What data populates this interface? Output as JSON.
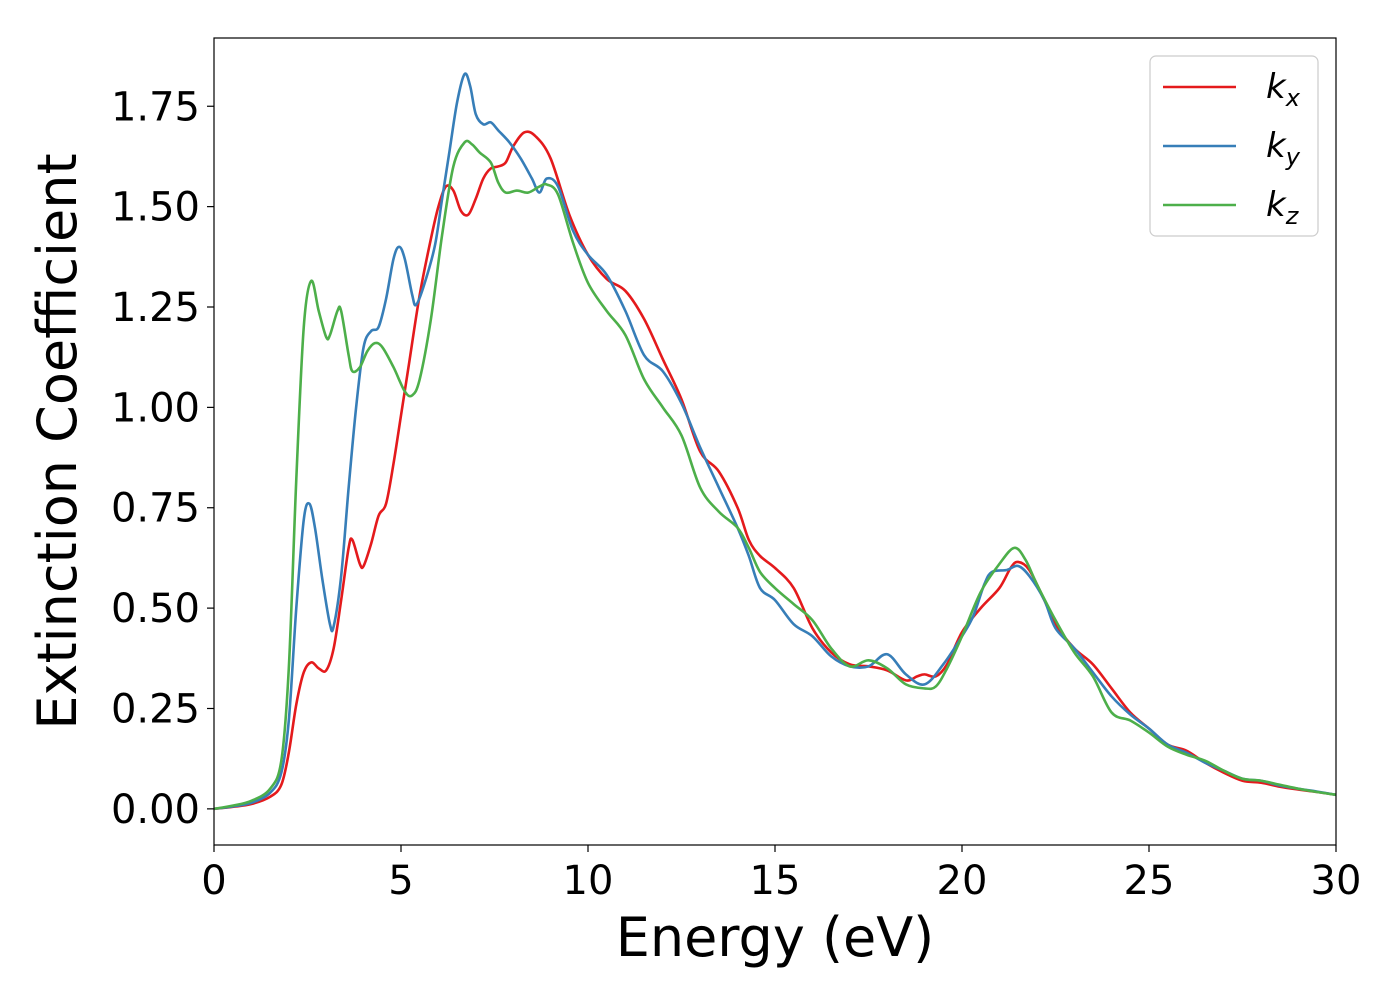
{
  "chart_data": {
    "type": "line",
    "title": "",
    "xlabel": "Energy (eV)",
    "ylabel": "Extinction Coefficient",
    "xlim": [
      0,
      30
    ],
    "ylim": [
      -0.09,
      1.92
    ],
    "x_ticks": [
      0,
      5,
      10,
      15,
      20,
      25,
      30
    ],
    "x_tick_labels": [
      "0",
      "5",
      "10",
      "15",
      "20",
      "25",
      "30"
    ],
    "y_ticks": [
      0,
      0.25,
      0.5,
      0.75,
      1.0,
      1.25,
      1.5,
      1.75
    ],
    "y_tick_labels": [
      "0.00",
      "0.25",
      "0.50",
      "0.75",
      "1.00",
      "1.25",
      "1.50",
      "1.75"
    ],
    "grid": false,
    "legend_position": "top-right",
    "series": [
      {
        "name": "kx",
        "label_main": "k",
        "label_sub": "x",
        "color": "#e41a1c",
        "points": [
          [
            0,
            0
          ],
          [
            0.5,
            0.005
          ],
          [
            1.0,
            0.012
          ],
          [
            1.5,
            0.03
          ],
          [
            1.8,
            0.06
          ],
          [
            2.0,
            0.14
          ],
          [
            2.2,
            0.26
          ],
          [
            2.4,
            0.34
          ],
          [
            2.6,
            0.365
          ],
          [
            2.8,
            0.35
          ],
          [
            3.0,
            0.345
          ],
          [
            3.2,
            0.4
          ],
          [
            3.4,
            0.52
          ],
          [
            3.6,
            0.65
          ],
          [
            3.7,
            0.67
          ],
          [
            3.9,
            0.61
          ],
          [
            4.0,
            0.605
          ],
          [
            4.2,
            0.66
          ],
          [
            4.4,
            0.73
          ],
          [
            4.6,
            0.76
          ],
          [
            4.8,
            0.86
          ],
          [
            5.0,
            0.98
          ],
          [
            5.2,
            1.1
          ],
          [
            5.5,
            1.28
          ],
          [
            5.8,
            1.42
          ],
          [
            6.0,
            1.5
          ],
          [
            6.2,
            1.55
          ],
          [
            6.4,
            1.54
          ],
          [
            6.6,
            1.49
          ],
          [
            6.8,
            1.48
          ],
          [
            7.0,
            1.52
          ],
          [
            7.2,
            1.57
          ],
          [
            7.4,
            1.595
          ],
          [
            7.6,
            1.6
          ],
          [
            7.8,
            1.61
          ],
          [
            8.0,
            1.65
          ],
          [
            8.3,
            1.685
          ],
          [
            8.6,
            1.675
          ],
          [
            9.0,
            1.62
          ],
          [
            9.5,
            1.48
          ],
          [
            10.0,
            1.38
          ],
          [
            10.5,
            1.32
          ],
          [
            11.0,
            1.29
          ],
          [
            11.5,
            1.22
          ],
          [
            12.0,
            1.12
          ],
          [
            12.5,
            1.02
          ],
          [
            13.0,
            0.89
          ],
          [
            13.5,
            0.84
          ],
          [
            14.0,
            0.75
          ],
          [
            14.3,
            0.67
          ],
          [
            14.6,
            0.63
          ],
          [
            15.0,
            0.6
          ],
          [
            15.5,
            0.55
          ],
          [
            16.0,
            0.45
          ],
          [
            16.5,
            0.39
          ],
          [
            17.0,
            0.36
          ],
          [
            17.5,
            0.355
          ],
          [
            18.0,
            0.345
          ],
          [
            18.5,
            0.32
          ],
          [
            18.8,
            0.33
          ],
          [
            19.0,
            0.335
          ],
          [
            19.3,
            0.33
          ],
          [
            19.6,
            0.36
          ],
          [
            20.0,
            0.44
          ],
          [
            20.5,
            0.5
          ],
          [
            21.0,
            0.55
          ],
          [
            21.3,
            0.6
          ],
          [
            21.5,
            0.615
          ],
          [
            21.8,
            0.595
          ],
          [
            22.2,
            0.52
          ],
          [
            22.5,
            0.46
          ],
          [
            23.0,
            0.4
          ],
          [
            23.5,
            0.36
          ],
          [
            24.0,
            0.3
          ],
          [
            24.5,
            0.24
          ],
          [
            25.0,
            0.2
          ],
          [
            25.5,
            0.16
          ],
          [
            26.0,
            0.145
          ],
          [
            26.5,
            0.115
          ],
          [
            27.0,
            0.09
          ],
          [
            27.5,
            0.07
          ],
          [
            28.0,
            0.065
          ],
          [
            28.5,
            0.055
          ],
          [
            29.0,
            0.048
          ],
          [
            29.5,
            0.042
          ],
          [
            30.0,
            0.035
          ]
        ]
      },
      {
        "name": "ky",
        "label_main": "k",
        "label_sub": "y",
        "color": "#377eb8",
        "points": [
          [
            0,
            0
          ],
          [
            0.5,
            0.006
          ],
          [
            1.0,
            0.015
          ],
          [
            1.5,
            0.04
          ],
          [
            1.8,
            0.09
          ],
          [
            2.0,
            0.22
          ],
          [
            2.2,
            0.5
          ],
          [
            2.4,
            0.72
          ],
          [
            2.55,
            0.76
          ],
          [
            2.7,
            0.7
          ],
          [
            2.9,
            0.57
          ],
          [
            3.1,
            0.46
          ],
          [
            3.2,
            0.455
          ],
          [
            3.4,
            0.58
          ],
          [
            3.6,
            0.8
          ],
          [
            3.8,
            1.0
          ],
          [
            4.0,
            1.15
          ],
          [
            4.2,
            1.19
          ],
          [
            4.4,
            1.2
          ],
          [
            4.6,
            1.27
          ],
          [
            4.8,
            1.37
          ],
          [
            4.95,
            1.4
          ],
          [
            5.1,
            1.37
          ],
          [
            5.3,
            1.28
          ],
          [
            5.4,
            1.255
          ],
          [
            5.6,
            1.3
          ],
          [
            5.9,
            1.4
          ],
          [
            6.1,
            1.52
          ],
          [
            6.3,
            1.64
          ],
          [
            6.5,
            1.76
          ],
          [
            6.7,
            1.83
          ],
          [
            6.85,
            1.8
          ],
          [
            7.0,
            1.73
          ],
          [
            7.2,
            1.705
          ],
          [
            7.4,
            1.71
          ],
          [
            7.6,
            1.69
          ],
          [
            7.9,
            1.66
          ],
          [
            8.2,
            1.62
          ],
          [
            8.5,
            1.57
          ],
          [
            8.7,
            1.535
          ],
          [
            8.9,
            1.57
          ],
          [
            9.2,
            1.55
          ],
          [
            9.6,
            1.44
          ],
          [
            10.0,
            1.38
          ],
          [
            10.5,
            1.33
          ],
          [
            11.0,
            1.24
          ],
          [
            11.5,
            1.13
          ],
          [
            12.0,
            1.09
          ],
          [
            12.5,
            1.01
          ],
          [
            13.0,
            0.9
          ],
          [
            13.5,
            0.8
          ],
          [
            14.0,
            0.7
          ],
          [
            14.3,
            0.63
          ],
          [
            14.6,
            0.55
          ],
          [
            15.0,
            0.52
          ],
          [
            15.5,
            0.46
          ],
          [
            16.0,
            0.43
          ],
          [
            16.5,
            0.38
          ],
          [
            17.0,
            0.355
          ],
          [
            17.5,
            0.355
          ],
          [
            18.0,
            0.385
          ],
          [
            18.5,
            0.335
          ],
          [
            19.0,
            0.31
          ],
          [
            19.5,
            0.36
          ],
          [
            20.0,
            0.43
          ],
          [
            20.3,
            0.48
          ],
          [
            20.6,
            0.56
          ],
          [
            20.8,
            0.59
          ],
          [
            21.2,
            0.595
          ],
          [
            21.5,
            0.605
          ],
          [
            21.8,
            0.58
          ],
          [
            22.2,
            0.52
          ],
          [
            22.5,
            0.45
          ],
          [
            23.0,
            0.4
          ],
          [
            23.5,
            0.34
          ],
          [
            24.0,
            0.28
          ],
          [
            24.5,
            0.235
          ],
          [
            25.0,
            0.2
          ],
          [
            25.5,
            0.16
          ],
          [
            26.0,
            0.14
          ],
          [
            26.5,
            0.115
          ],
          [
            27.0,
            0.095
          ],
          [
            27.5,
            0.075
          ],
          [
            28.0,
            0.07
          ],
          [
            28.5,
            0.058
          ],
          [
            29.0,
            0.05
          ],
          [
            29.5,
            0.043
          ],
          [
            30.0,
            0.035
          ]
        ]
      },
      {
        "name": "kz",
        "label_main": "k",
        "label_sub": "z",
        "color": "#4daf4a",
        "points": [
          [
            0,
            0
          ],
          [
            0.5,
            0.008
          ],
          [
            1.0,
            0.02
          ],
          [
            1.5,
            0.05
          ],
          [
            1.8,
            0.12
          ],
          [
            2.0,
            0.35
          ],
          [
            2.2,
            0.82
          ],
          [
            2.4,
            1.2
          ],
          [
            2.6,
            1.315
          ],
          [
            2.8,
            1.24
          ],
          [
            3.0,
            1.175
          ],
          [
            3.1,
            1.18
          ],
          [
            3.3,
            1.24
          ],
          [
            3.4,
            1.24
          ],
          [
            3.6,
            1.13
          ],
          [
            3.7,
            1.09
          ],
          [
            3.9,
            1.1
          ],
          [
            4.1,
            1.14
          ],
          [
            4.3,
            1.16
          ],
          [
            4.5,
            1.15
          ],
          [
            4.8,
            1.1
          ],
          [
            5.1,
            1.04
          ],
          [
            5.3,
            1.03
          ],
          [
            5.5,
            1.07
          ],
          [
            5.8,
            1.22
          ],
          [
            6.1,
            1.43
          ],
          [
            6.4,
            1.6
          ],
          [
            6.7,
            1.66
          ],
          [
            6.9,
            1.655
          ],
          [
            7.1,
            1.635
          ],
          [
            7.4,
            1.61
          ],
          [
            7.6,
            1.56
          ],
          [
            7.8,
            1.535
          ],
          [
            8.1,
            1.54
          ],
          [
            8.4,
            1.535
          ],
          [
            8.7,
            1.55
          ],
          [
            8.9,
            1.555
          ],
          [
            9.2,
            1.53
          ],
          [
            9.6,
            1.41
          ],
          [
            10.0,
            1.31
          ],
          [
            10.5,
            1.24
          ],
          [
            11.0,
            1.18
          ],
          [
            11.5,
            1.07
          ],
          [
            12.0,
            1.0
          ],
          [
            12.5,
            0.93
          ],
          [
            13.0,
            0.8
          ],
          [
            13.5,
            0.74
          ],
          [
            14.0,
            0.7
          ],
          [
            14.3,
            0.65
          ],
          [
            14.6,
            0.59
          ],
          [
            15.0,
            0.55
          ],
          [
            15.5,
            0.51
          ],
          [
            16.0,
            0.47
          ],
          [
            16.5,
            0.4
          ],
          [
            17.0,
            0.355
          ],
          [
            17.5,
            0.37
          ],
          [
            18.0,
            0.35
          ],
          [
            18.5,
            0.31
          ],
          [
            19.0,
            0.3
          ],
          [
            19.3,
            0.305
          ],
          [
            19.6,
            0.35
          ],
          [
            20.0,
            0.43
          ],
          [
            20.5,
            0.54
          ],
          [
            21.0,
            0.61
          ],
          [
            21.4,
            0.65
          ],
          [
            21.7,
            0.62
          ],
          [
            22.0,
            0.56
          ],
          [
            22.5,
            0.47
          ],
          [
            23.0,
            0.39
          ],
          [
            23.5,
            0.33
          ],
          [
            24.0,
            0.24
          ],
          [
            24.5,
            0.22
          ],
          [
            25.0,
            0.19
          ],
          [
            25.5,
            0.155
          ],
          [
            26.0,
            0.135
          ],
          [
            26.5,
            0.12
          ],
          [
            27.0,
            0.095
          ],
          [
            27.5,
            0.075
          ],
          [
            28.0,
            0.07
          ],
          [
            28.5,
            0.06
          ],
          [
            29.0,
            0.05
          ],
          [
            29.5,
            0.042
          ],
          [
            30.0,
            0.035
          ]
        ]
      }
    ]
  }
}
